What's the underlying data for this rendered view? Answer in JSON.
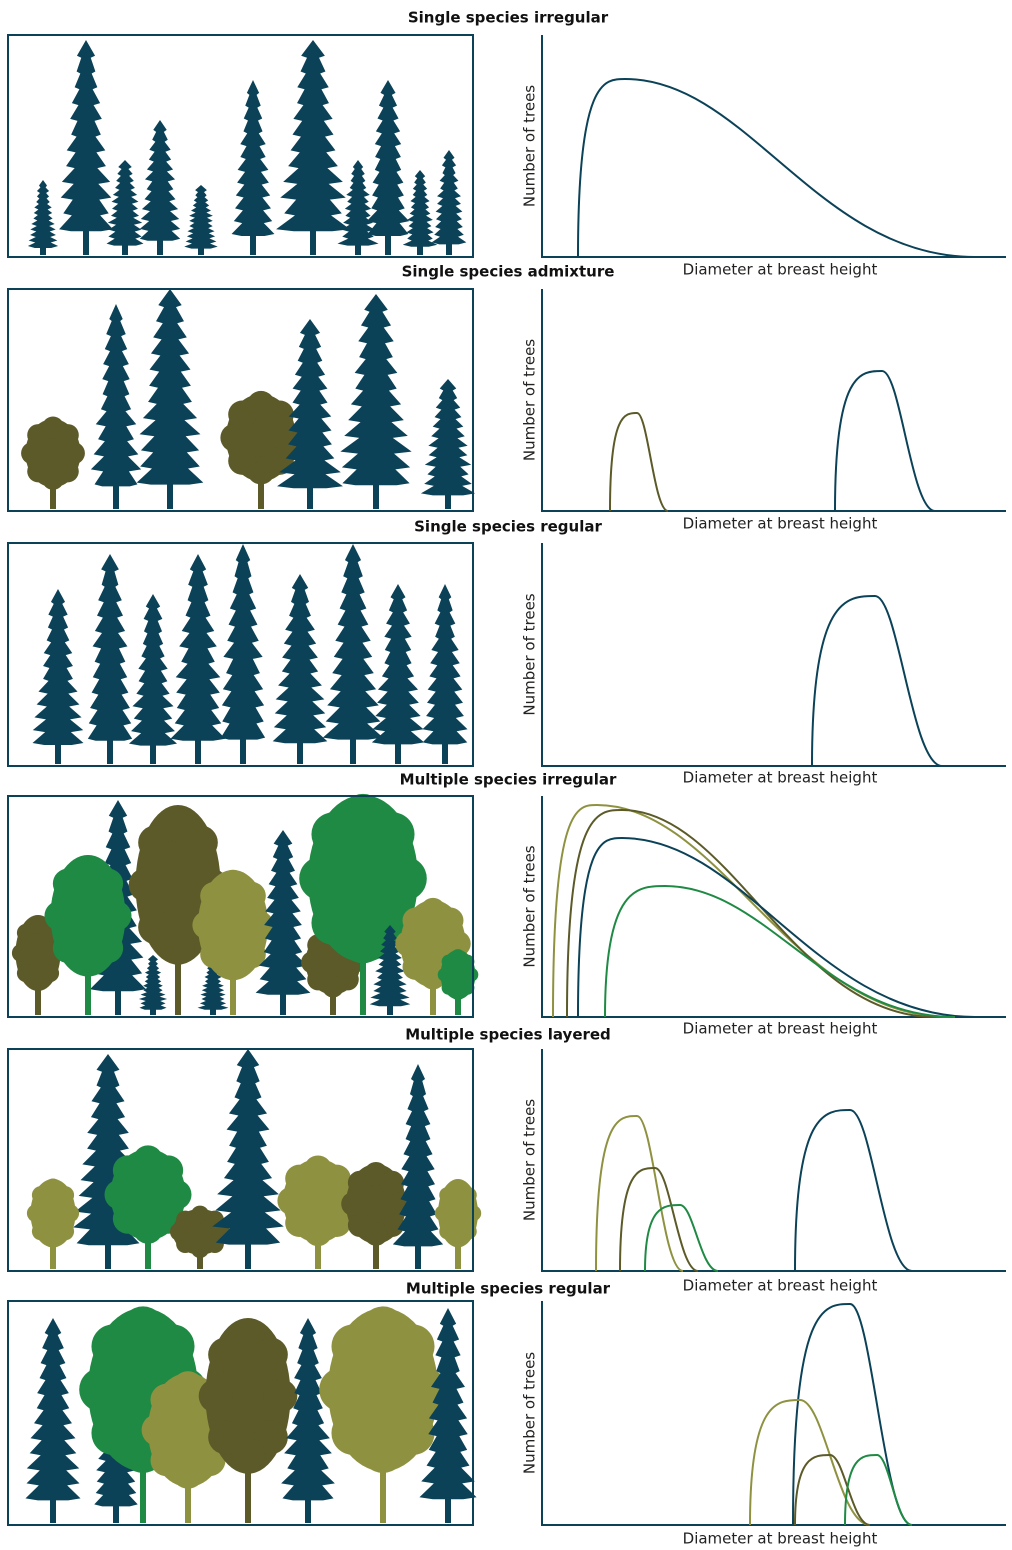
{
  "panels": [
    {
      "title": "Single species irregular",
      "y_label": "Number of trees",
      "x_label": "Diameter at breast height"
    },
    {
      "title": "Single species admixture",
      "y_label": "Number of trees",
      "x_label": "Diameter at breast height"
    },
    {
      "title": "Single species regular",
      "y_label": "Number of trees",
      "x_label": "Diameter at breast height"
    },
    {
      "title": "Multiple species irregular",
      "y_label": "Number of trees",
      "x_label": "Diameter at breast height"
    },
    {
      "title": "Multiple species layered",
      "y_label": "Number of trees",
      "x_label": "Diameter at breast height"
    },
    {
      "title": "Multiple species regular",
      "y_label": "Number of trees",
      "x_label": "Diameter at breast height"
    }
  ]
}
